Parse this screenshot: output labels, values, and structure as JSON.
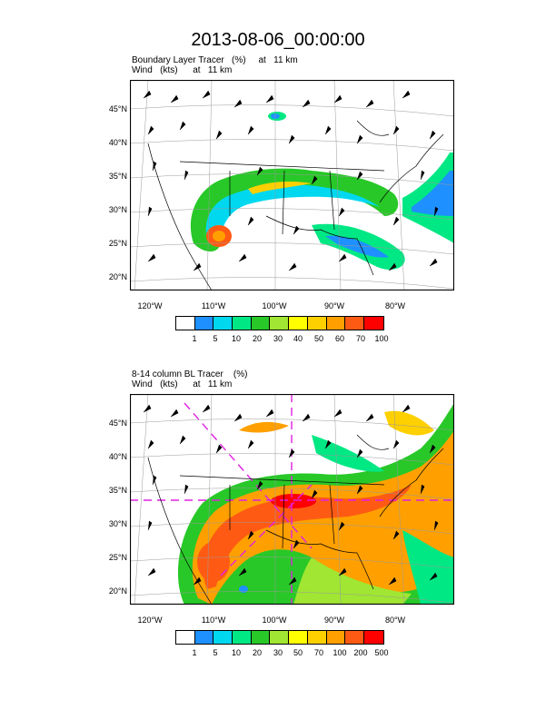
{
  "title": "2013-08-06_00:00:00",
  "panels": [
    {
      "line1": "Boundary Layer Tracer   (%)     at   11 km",
      "line2": "Wind   (kts)      at   11 km",
      "lat_ticks": [
        "45°N",
        "40°N",
        "35°N",
        "30°N",
        "25°N",
        "20°N"
      ],
      "lon_ticks": [
        "120°W",
        "110°W",
        "100°W",
        "90°W",
        "80°W"
      ],
      "colorbar_labels": [
        "1",
        "5",
        "10",
        "20",
        "30",
        "40",
        "50",
        "60",
        "70",
        "100"
      ],
      "colorbar_colors": [
        "#ffffff",
        "#1e90ff",
        "#00d8f0",
        "#00e884",
        "#28c828",
        "#a0e632",
        "#ffff00",
        "#ffd000",
        "#ffa000",
        "#ff5a14",
        "#ff0000"
      ]
    },
    {
      "line1": "8-14 column BL Tracer    (%)",
      "line2": "Wind   (kts)      at   11 km",
      "lat_ticks": [
        "45°N",
        "40°N",
        "35°N",
        "30°N",
        "25°N",
        "20°N"
      ],
      "lon_ticks": [
        "120°W",
        "110°W",
        "100°W",
        "90°W",
        "80°W"
      ],
      "colorbar_labels": [
        "1",
        "5",
        "10",
        "20",
        "30",
        "50",
        "70",
        "100",
        "200",
        "500"
      ],
      "colorbar_colors": [
        "#ffffff",
        "#1e90ff",
        "#00d8f0",
        "#00e884",
        "#28c828",
        "#a0e632",
        "#ffff00",
        "#ffd000",
        "#ffa000",
        "#ff5a14",
        "#ff0000"
      ]
    }
  ],
  "colors": {
    "frame": "#000000",
    "overlay_dash": "#e020e0",
    "grid": "#888888"
  }
}
